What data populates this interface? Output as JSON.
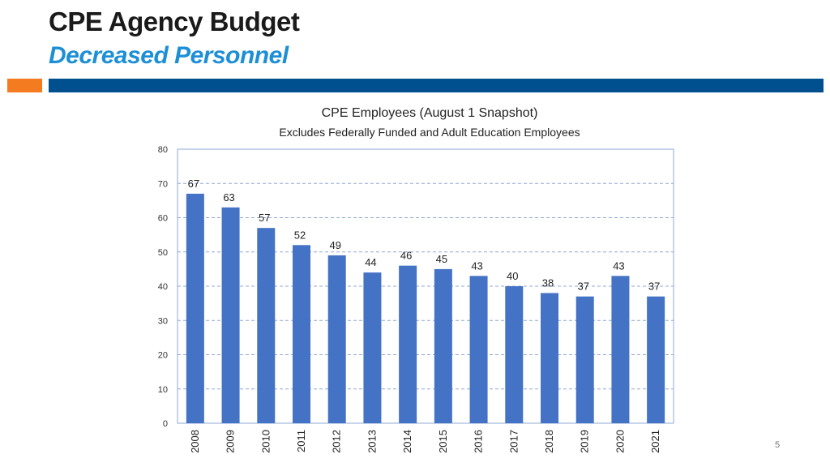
{
  "slide": {
    "title": "CPE Agency Budget",
    "subtitle": "Decreased Personnel",
    "page_number": "5"
  },
  "colors": {
    "accent_orange": "#f47b20",
    "accent_blue": "#00508f",
    "subtitle_blue": "#1c8fd6",
    "bar": "#4472c4",
    "grid": "#8fa9d6"
  },
  "chart_data": {
    "type": "bar",
    "title": "CPE Employees (August 1 Snapshot)",
    "subtitle": "Excludes Federally Funded and Adult Education Employees",
    "categories": [
      "2008",
      "2009",
      "2010",
      "2011",
      "2012",
      "2013",
      "2014",
      "2015",
      "2016",
      "2017",
      "2018",
      "2019",
      "2020",
      "2021"
    ],
    "values": [
      67,
      63,
      57,
      52,
      49,
      44,
      46,
      45,
      43,
      40,
      38,
      37,
      43,
      37
    ],
    "ylim": [
      0,
      80
    ],
    "yticks": [
      0,
      10,
      20,
      30,
      40,
      50,
      60,
      70,
      80
    ],
    "grid": true,
    "data_labels": true,
    "legend": "none"
  }
}
